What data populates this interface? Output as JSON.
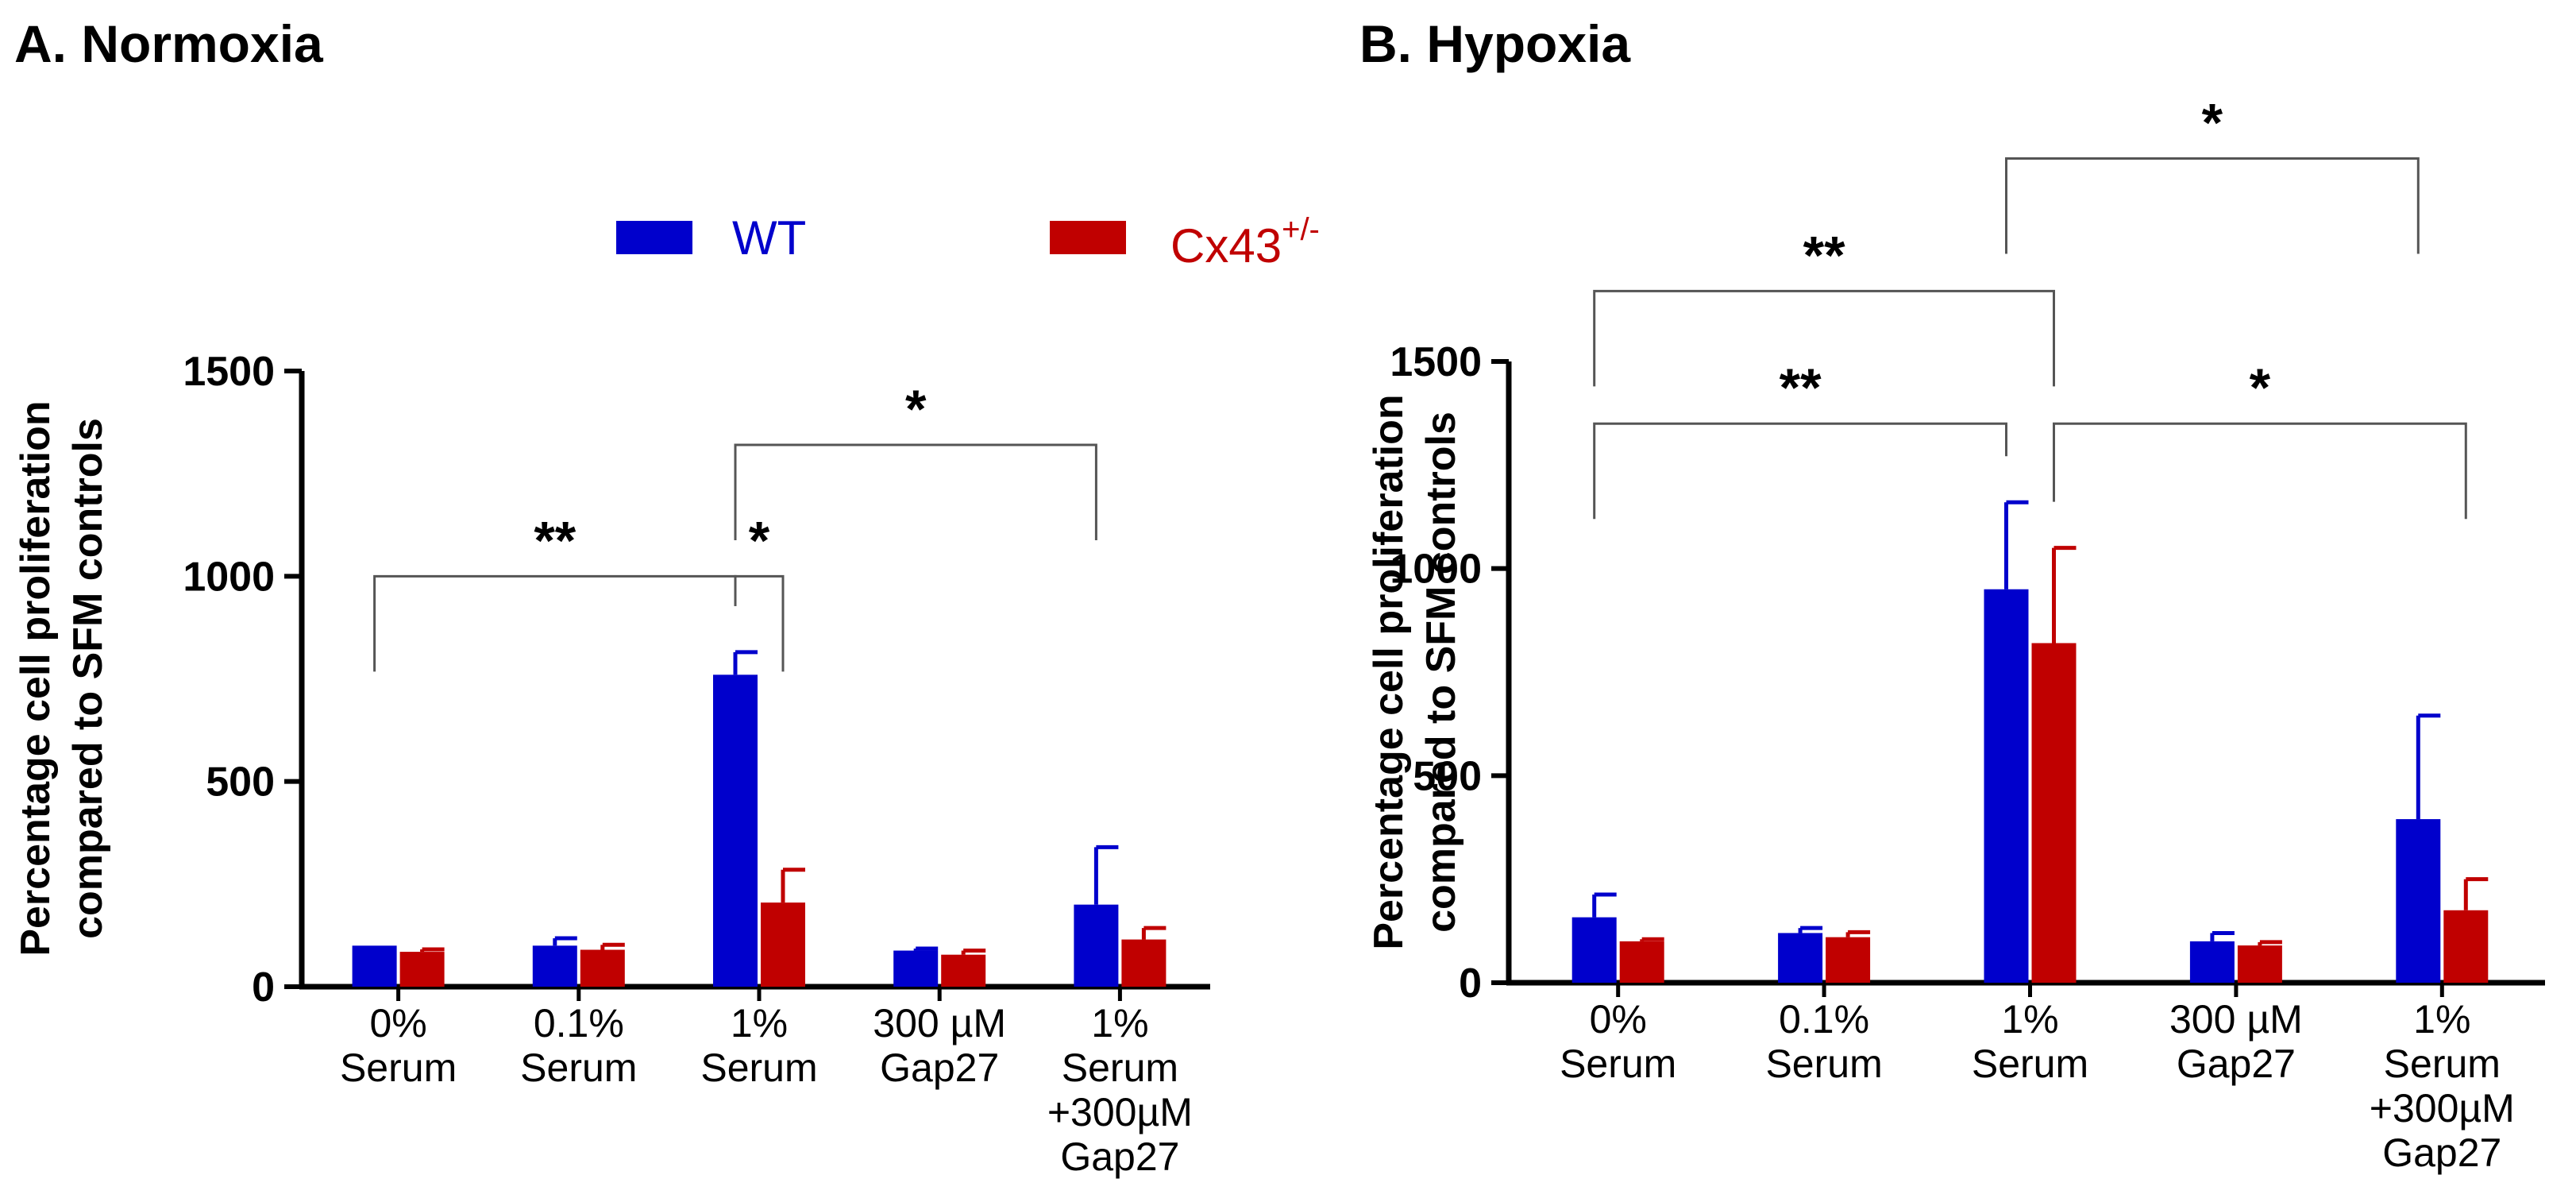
{
  "colors": {
    "wt": "#0000CC",
    "cx43": "#C00000",
    "axis": "#000000",
    "bracket": "#555555"
  },
  "legend": {
    "wt_label": "WT",
    "cx43_label": "Cx43",
    "cx43_superscript": "+/-"
  },
  "y_axis_label": [
    "Percentage cell proliferation",
    "compared to SFM controls"
  ],
  "categories": [
    [
      "0%",
      "Serum"
    ],
    [
      "0.1%",
      "Serum"
    ],
    [
      "1%",
      "Serum"
    ],
    [
      "300 µM",
      "Gap27"
    ],
    [
      "1%",
      "Serum",
      "+300µM",
      "Gap27"
    ]
  ],
  "chart_data": [
    {
      "type": "bar",
      "title": "A. Normoxia",
      "ylabel": "Percentage cell proliferation compared to SFM controls",
      "ylim": [
        0,
        1500
      ],
      "yticks": [
        0,
        500,
        1000,
        1500
      ],
      "series": [
        {
          "name": "WT",
          "values": [
            100,
            100,
            760,
            88,
            200
          ],
          "errors": [
            0,
            18,
            55,
            5,
            140
          ]
        },
        {
          "name": "Cx43+/-",
          "values": [
            85,
            90,
            205,
            78,
            115
          ],
          "errors": [
            6,
            12,
            80,
            10,
            28
          ]
        }
      ],
      "significance": [
        {
          "label": "**",
          "from": [
            0,
            0
          ],
          "to": [
            2,
            0
          ],
          "level": 1000
        },
        {
          "label": "*",
          "from": [
            2,
            0
          ],
          "to": [
            2,
            1
          ],
          "level": 1000
        },
        {
          "label": "*",
          "from": [
            2,
            0
          ],
          "to": [
            4,
            0
          ],
          "level": 1320
        }
      ]
    },
    {
      "type": "bar",
      "title": "B. Hypoxia",
      "ylabel": "Percentage cell proliferation compared to SFM controls",
      "ylim": [
        0,
        1500
      ],
      "yticks": [
        0,
        500,
        1000,
        1500
      ],
      "series": [
        {
          "name": "WT",
          "values": [
            158,
            120,
            950,
            100,
            395
          ],
          "errors": [
            55,
            12,
            210,
            20,
            250
          ]
        },
        {
          "name": "Cx43+/-",
          "values": [
            100,
            110,
            820,
            90,
            175
          ],
          "errors": [
            5,
            12,
            230,
            8,
            75
          ]
        }
      ],
      "significance": [
        {
          "label": "**",
          "from": [
            0,
            0
          ],
          "to": [
            2,
            0
          ],
          "level": 1350
        },
        {
          "label": "*",
          "from": [
            2,
            1
          ],
          "to": [
            4,
            1
          ],
          "level": 1350
        },
        {
          "label": "**",
          "from": [
            0,
            0
          ],
          "to": [
            2,
            1
          ],
          "level": 1670
        },
        {
          "label": "*",
          "from": [
            2,
            0
          ],
          "to": [
            4,
            0
          ],
          "level": 1990
        }
      ]
    }
  ]
}
